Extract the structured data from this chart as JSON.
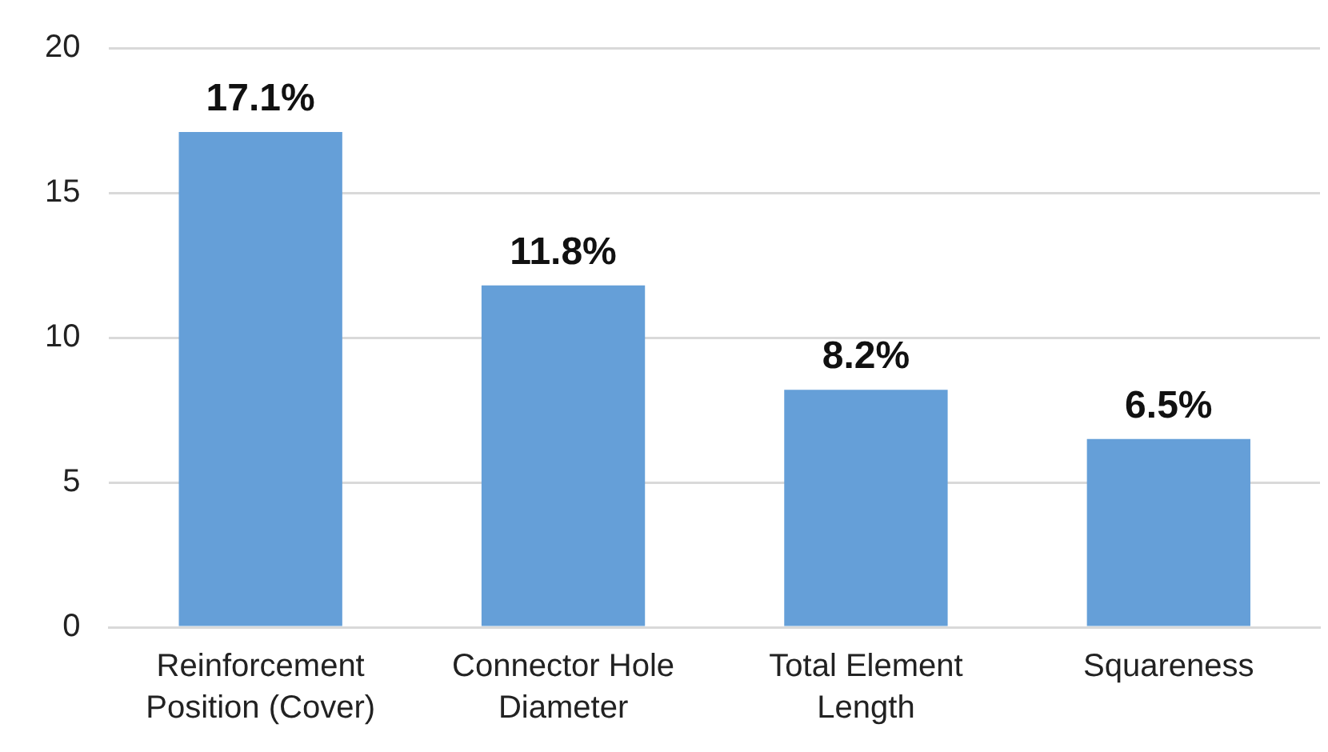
{
  "chart_data": {
    "type": "bar",
    "categories": [
      "Reinforcement Position (Cover)",
      "Connector Hole Diameter",
      "Total Element Length",
      "Squareness"
    ],
    "values": [
      17.1,
      11.8,
      8.2,
      6.5
    ],
    "value_labels": [
      "17.1%",
      "11.8%",
      "8.2%",
      "6.5%"
    ],
    "color": "#659fd8",
    "ylim": [
      0,
      20
    ],
    "yticks": [
      0,
      5,
      10,
      15,
      20
    ],
    "grid": "y",
    "legend": false
  }
}
